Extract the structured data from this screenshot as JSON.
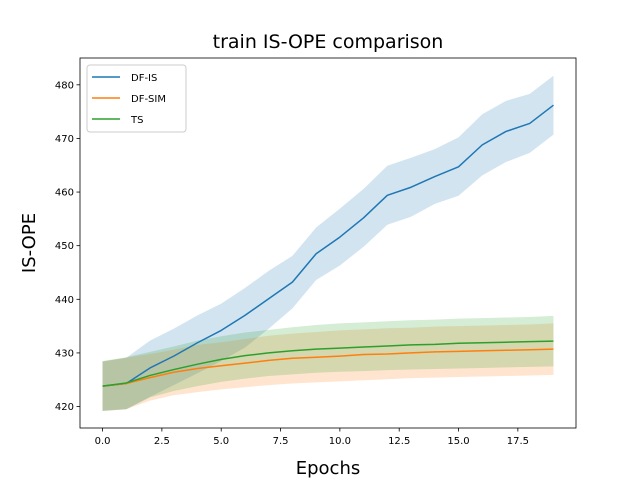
{
  "chart_data": {
    "type": "line",
    "title": "train IS-OPE comparison",
    "xlabel": "Epochs",
    "ylabel": "IS-OPE",
    "xlim": [
      -0.95,
      19.95
    ],
    "ylim": [
      416,
      485
    ],
    "xticks": [
      0.0,
      2.5,
      5.0,
      7.5,
      10.0,
      12.5,
      15.0,
      17.5
    ],
    "xtick_labels": [
      "0.0",
      "2.5",
      "5.0",
      "7.5",
      "10.0",
      "12.5",
      "15.0",
      "17.5"
    ],
    "yticks": [
      420,
      430,
      440,
      450,
      460,
      470,
      480
    ],
    "ytick_labels": [
      "420",
      "430",
      "440",
      "450",
      "460",
      "470",
      "480"
    ],
    "grid": false,
    "legend_position": "top-left",
    "x": [
      0,
      1,
      2,
      3,
      4,
      5,
      6,
      7,
      8,
      9,
      10,
      11,
      12,
      13,
      14,
      15,
      16,
      17,
      18,
      19
    ],
    "series": [
      {
        "name": "DF-IS",
        "color": "#1f77b4",
        "values": [
          423.8,
          424.3,
          427.2,
          429.4,
          431.9,
          434.2,
          437.0,
          440.1,
          443.2,
          448.5,
          451.6,
          455.2,
          459.4,
          460.9,
          462.9,
          464.7,
          468.8,
          471.3,
          472.8,
          476.2
        ],
        "lower": [
          419.2,
          419.5,
          421.8,
          424.0,
          426.2,
          428.5,
          431.0,
          434.5,
          438.3,
          443.6,
          446.3,
          449.8,
          453.9,
          455.4,
          457.8,
          459.3,
          463.1,
          465.6,
          467.3,
          470.7
        ],
        "upper": [
          428.4,
          429.1,
          432.3,
          434.5,
          437.0,
          439.2,
          442.1,
          445.3,
          448.1,
          453.4,
          456.9,
          460.6,
          464.9,
          466.4,
          468.0,
          470.2,
          474.5,
          477.0,
          478.3,
          481.7
        ]
      },
      {
        "name": "DF-SIM",
        "color": "#ff7f0e",
        "values": [
          423.8,
          424.3,
          425.4,
          426.4,
          427.1,
          427.6,
          428.1,
          428.6,
          429.0,
          429.2,
          429.4,
          429.7,
          429.8,
          430.0,
          430.2,
          430.3,
          430.4,
          430.5,
          430.6,
          430.7
        ],
        "lower": [
          419.2,
          419.5,
          421.1,
          422.1,
          422.7,
          423.2,
          423.6,
          424.0,
          424.3,
          424.5,
          424.7,
          424.9,
          425.1,
          425.3,
          425.4,
          425.5,
          425.6,
          425.7,
          425.8,
          425.9
        ],
        "upper": [
          428.4,
          429.1,
          429.8,
          430.6,
          431.5,
          432.0,
          432.6,
          433.2,
          433.6,
          433.9,
          434.2,
          434.4,
          434.6,
          434.7,
          434.9,
          435.0,
          435.1,
          435.2,
          435.3,
          435.5
        ]
      },
      {
        "name": "TS",
        "color": "#2ca02c",
        "values": [
          423.8,
          424.4,
          425.8,
          426.9,
          427.9,
          428.8,
          429.5,
          430.0,
          430.4,
          430.7,
          430.9,
          431.1,
          431.3,
          431.5,
          431.6,
          431.8,
          431.9,
          432.0,
          432.1,
          432.2
        ],
        "lower": [
          419.2,
          419.5,
          421.7,
          422.9,
          423.8,
          424.6,
          425.2,
          425.7,
          426.0,
          426.3,
          426.5,
          426.6,
          426.8,
          426.9,
          427.0,
          427.1,
          427.2,
          427.3,
          427.4,
          427.5
        ],
        "upper": [
          428.5,
          429.2,
          430.2,
          431.2,
          432.3,
          433.1,
          433.8,
          434.3,
          434.8,
          435.2,
          435.5,
          435.7,
          435.9,
          436.1,
          436.2,
          436.4,
          436.5,
          436.6,
          436.7,
          436.9
        ]
      }
    ]
  }
}
